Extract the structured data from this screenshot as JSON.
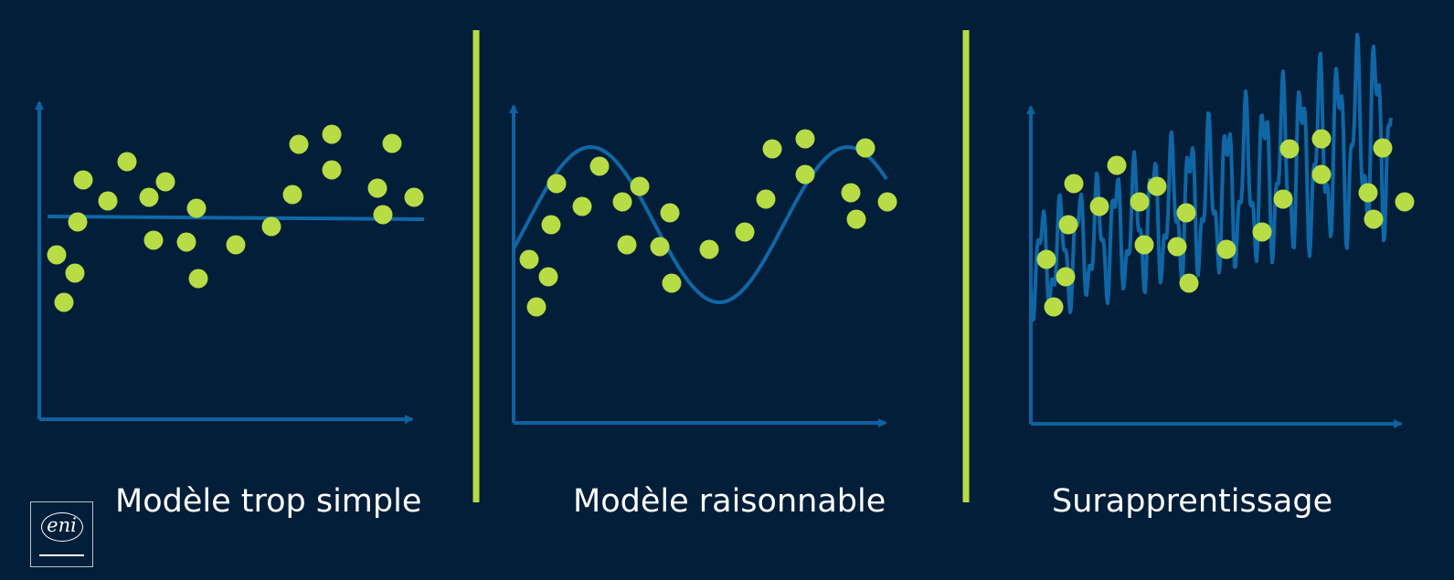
{
  "colors": {
    "background": "#021e38",
    "axis": "#0f62a0",
    "curve": "#1067a6",
    "points": "#b7dc45",
    "divider": "#b7dc45",
    "text": "#ffffff"
  },
  "panels": [
    {
      "caption": "Modèle trop simple",
      "model": "constant"
    },
    {
      "caption": "Modèle raisonnable",
      "model": "smooth"
    },
    {
      "caption": "Surapprentissage",
      "model": "overfit"
    }
  ],
  "logo": {
    "text": "eni"
  }
}
